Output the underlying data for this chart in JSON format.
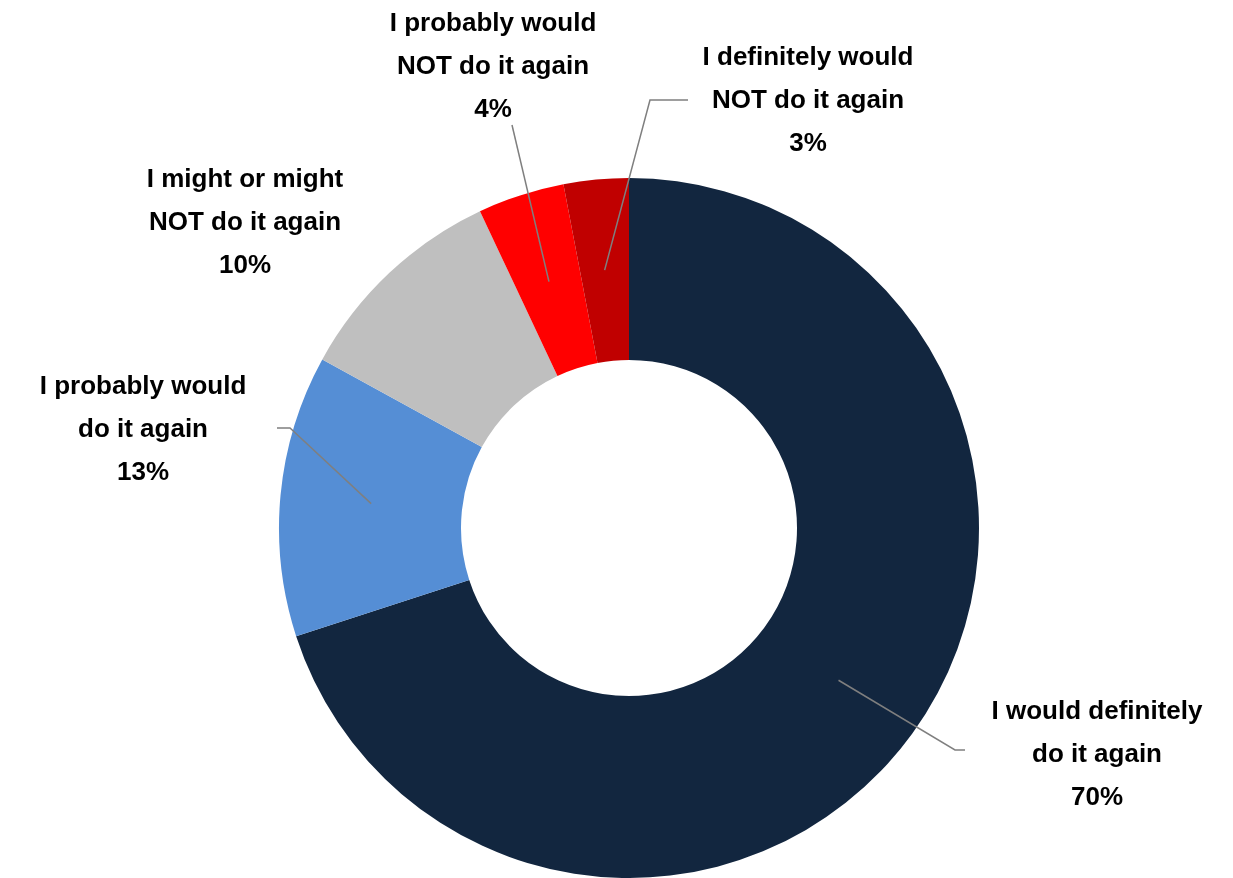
{
  "chart_data": {
    "type": "donut",
    "categories": [
      "I would definitely do it again",
      "I probably would do it again",
      "I might or might NOT do it again",
      "I probably would NOT do it again",
      "I definitely would NOT do it again"
    ],
    "values": [
      70,
      13,
      10,
      4,
      3
    ],
    "value_labels": [
      "70%",
      "13%",
      "10%",
      "4%",
      "3%"
    ],
    "colors": [
      "#12263f",
      "#558ed5",
      "#bfbfbf",
      "#ff0000",
      "#c00000"
    ]
  }
}
